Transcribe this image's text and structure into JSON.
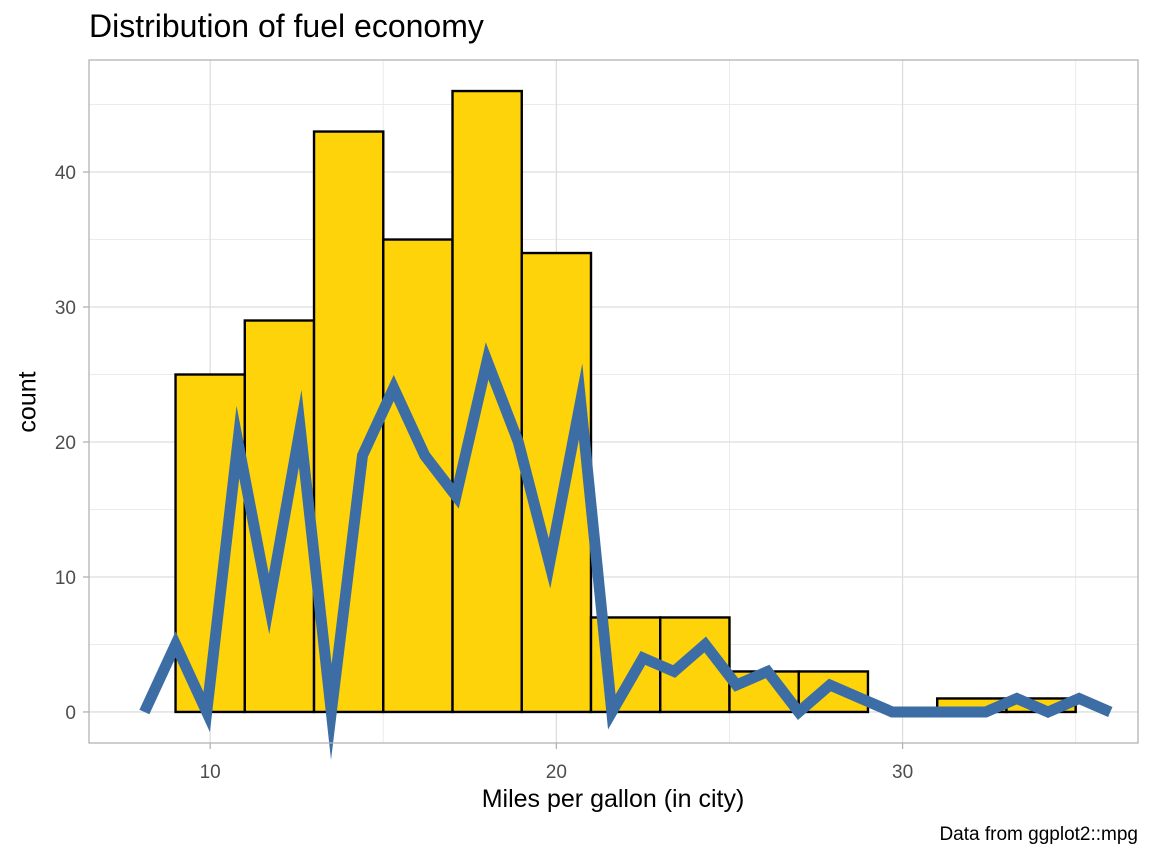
{
  "chart_data": {
    "type": "bar",
    "title": "Distribution of fuel economy",
    "xlabel": "Miles per gallon (in city)",
    "ylabel": "count",
    "caption": "Data from ggplot2::mpg",
    "xlim": [
      6.5,
      36.8
    ],
    "ylim": [
      -2.3,
      48.3
    ],
    "x_ticks": [
      10,
      20,
      30
    ],
    "y_ticks": [
      0,
      10,
      20,
      30,
      40
    ],
    "grid": true,
    "histogram": {
      "name": "histogram",
      "fill_color": "#FFD30A",
      "outline_color": "#000000",
      "bins": [
        {
          "x0": 9,
          "x1": 11,
          "count": 25
        },
        {
          "x0": 11,
          "x1": 13,
          "count": 29
        },
        {
          "x0": 13,
          "x1": 15,
          "count": 43
        },
        {
          "x0": 15,
          "x1": 17,
          "count": 35
        },
        {
          "x0": 17,
          "x1": 19,
          "count": 46
        },
        {
          "x0": 19,
          "x1": 21,
          "count": 34
        },
        {
          "x0": 21,
          "x1": 23,
          "count": 7
        },
        {
          "x0": 23,
          "x1": 25,
          "count": 7
        },
        {
          "x0": 25,
          "x1": 27,
          "count": 3
        },
        {
          "x0": 27,
          "x1": 29,
          "count": 3
        },
        {
          "x0": 29,
          "x1": 31,
          "count": 0
        },
        {
          "x0": 31,
          "x1": 33,
          "count": 1
        },
        {
          "x0": 33,
          "x1": 35,
          "count": 1
        }
      ]
    },
    "frequency_line": {
      "name": "frequency polygon",
      "color": "#3C6EA5",
      "points": [
        {
          "x": 8.1,
          "y": 0
        },
        {
          "x": 9.0,
          "y": 5
        },
        {
          "x": 9.9,
          "y": 0
        },
        {
          "x": 10.8,
          "y": 20
        },
        {
          "x": 11.7,
          "y": 8
        },
        {
          "x": 12.6,
          "y": 21
        },
        {
          "x": 13.5,
          "y": 0
        },
        {
          "x": 14.4,
          "y": 19
        },
        {
          "x": 15.3,
          "y": 24
        },
        {
          "x": 16.2,
          "y": 19
        },
        {
          "x": 17.1,
          "y": 16
        },
        {
          "x": 18.0,
          "y": 26
        },
        {
          "x": 18.9,
          "y": 20
        },
        {
          "x": 19.8,
          "y": 11
        },
        {
          "x": 20.7,
          "y": 23
        },
        {
          "x": 21.6,
          "y": 0
        },
        {
          "x": 22.5,
          "y": 4
        },
        {
          "x": 23.4,
          "y": 3
        },
        {
          "x": 24.3,
          "y": 5
        },
        {
          "x": 25.2,
          "y": 2
        },
        {
          "x": 26.1,
          "y": 3
        },
        {
          "x": 27.0,
          "y": 0
        },
        {
          "x": 27.9,
          "y": 2
        },
        {
          "x": 28.8,
          "y": 1
        },
        {
          "x": 29.7,
          "y": 0
        },
        {
          "x": 30.6,
          "y": 0
        },
        {
          "x": 31.5,
          "y": 0
        },
        {
          "x": 32.4,
          "y": 0
        },
        {
          "x": 33.3,
          "y": 1
        },
        {
          "x": 34.2,
          "y": 0
        },
        {
          "x": 35.1,
          "y": 1
        },
        {
          "x": 36.0,
          "y": 0
        }
      ]
    }
  }
}
